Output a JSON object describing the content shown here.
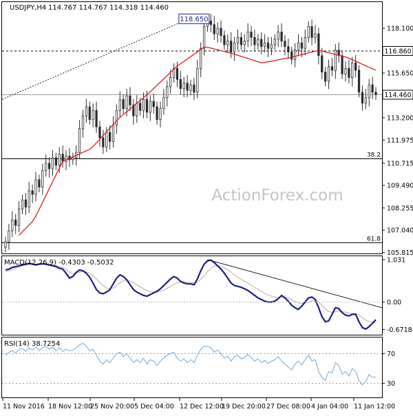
{
  "header": {
    "symbol_text": "USDJPY,H4",
    "ohlc_text": "114.767 114.767 114.318 114.460"
  },
  "watermark": "ActionForex.com",
  "colors": {
    "candle": "#2b2b2b",
    "sma": "#e0191b",
    "macd_line": "#1c1c8a",
    "macd_signal": "#c8a0a0",
    "rsi_line": "#6fa8dc",
    "trendline": "#1a1a1a",
    "axis": "#000000",
    "marker_box": "#1c1c8a"
  },
  "chart_data": [
    {
      "type": "candlestick",
      "panel": "price",
      "y_range": [
        105.8,
        119.5
      ],
      "y_ticks": [
        "118.100",
        "116.860",
        "115.650",
        "114.460",
        "113.200",
        "111.975",
        "110.715",
        "109.490",
        "108.255",
        "107.040",
        "105.815"
      ],
      "x_labels": [
        "11 Nov 2016",
        "18 Nov 12:00",
        "25 Nov 20:00",
        "5 Dec 04:00",
        "12 Dec 12:00",
        "19 Dec 20:00",
        "27 Dec 08:00",
        "4 Jan 04:00",
        "11 Jan 12:00"
      ],
      "highlighted_values": {
        "peak_box": "118.650",
        "resistance": "116.860",
        "current": "114.460"
      },
      "levels": [
        {
          "label": "",
          "value": 116.86,
          "style": "dashed"
        },
        {
          "label": "",
          "value": 114.46,
          "style": "solid-gray"
        },
        {
          "label": "38.2",
          "value": 110.95,
          "style": "solid"
        },
        {
          "label": "61.8",
          "value": 106.35,
          "style": "solid"
        }
      ],
      "closes": [
        106.4,
        107.0,
        107.6,
        107.3,
        108.2,
        108.7,
        108.3,
        109.2,
        109.0,
        109.8,
        109.4,
        110.3,
        110.7,
        110.4,
        111.0,
        110.6,
        111.2,
        110.8,
        111.1,
        110.9,
        111.0,
        111.3,
        112.6,
        113.3,
        113.8,
        113.1,
        113.6,
        112.7,
        112.1,
        111.6,
        112.4,
        111.9,
        112.8,
        113.6,
        114.2,
        113.7,
        114.4,
        113.9,
        113.3,
        114.0,
        113.6,
        114.2,
        113.5,
        114.1,
        113.8,
        113.1,
        113.7,
        114.3,
        114.9,
        115.4,
        115.9,
        115.3,
        114.8,
        115.1,
        114.7,
        115.0,
        114.6,
        115.9,
        117.0,
        118.2,
        118.5,
        118.3,
        117.8,
        118.1,
        117.7,
        117.2,
        117.4,
        116.8,
        117.3,
        117.6,
        117.2,
        117.4,
        117.9,
        117.6,
        117.2,
        117.5,
        117.1,
        117.3,
        117.0,
        117.2,
        117.5,
        117.9,
        117.4,
        117.1,
        116.8,
        116.4,
        116.9,
        117.3,
        117.0,
        117.6,
        118.2,
        117.6,
        117.8,
        116.6,
        115.7,
        115.2,
        116.0,
        115.8,
        116.9,
        116.6,
        115.6,
        115.9,
        115.4,
        116.2,
        115.8,
        114.6,
        114.0,
        114.3,
        115.0,
        114.6,
        114.46
      ],
      "sma_anchor_values": [
        106.0,
        107.6,
        110.8,
        111.5,
        113.2,
        114.5,
        116.0,
        117.1,
        116.7,
        116.2,
        116.5,
        116.9,
        116.5,
        115.8
      ],
      "y_label_side": "right"
    },
    {
      "type": "line",
      "panel": "macd",
      "title": "MACD(12,26,9) -0.4303 -0.5032",
      "y_range": [
        -0.78,
        1.08
      ],
      "y_ticks": [
        "1.031",
        "0.00",
        "-0.6718"
      ],
      "series": [
        {
          "name": "",
          "values": [
            0.78,
            0.8,
            0.84,
            0.86,
            0.88,
            0.9,
            0.92,
            0.94,
            0.92,
            0.9,
            0.92,
            0.93,
            0.92,
            0.9,
            0.88,
            0.86,
            0.82,
            0.8,
            0.7,
            0.58,
            0.62,
            0.72,
            0.78,
            0.76,
            0.7,
            0.6,
            0.46,
            0.3,
            0.22,
            0.2,
            0.24,
            0.3,
            0.44,
            0.58,
            0.66,
            0.62,
            0.54,
            0.42,
            0.3,
            0.24,
            0.2,
            0.16,
            0.14,
            0.18,
            0.22,
            0.26,
            0.32,
            0.4,
            0.48,
            0.56,
            0.62,
            0.58,
            0.5,
            0.46,
            0.44,
            0.44,
            0.42,
            0.56,
            0.76,
            0.92,
            1.0,
            1.02,
            0.96,
            0.88,
            0.8,
            0.7,
            0.58,
            0.46,
            0.4,
            0.38,
            0.36,
            0.32,
            0.28,
            0.22,
            0.16,
            0.1,
            0.06,
            0.02,
            0.0,
            0.0,
            0.02,
            0.08,
            0.16,
            0.1,
            0.02,
            -0.08,
            -0.14,
            -0.18,
            -0.1,
            0.0,
            0.1,
            0.12,
            0.06,
            -0.14,
            -0.36,
            -0.48,
            -0.46,
            -0.3,
            -0.14,
            -0.16,
            -0.26,
            -0.32,
            -0.34,
            -0.3,
            -0.3,
            -0.48,
            -0.62,
            -0.66,
            -0.6,
            -0.52,
            -0.43
          ]
        },
        {
          "name": "",
          "values": [
            0.74,
            0.76,
            0.79,
            0.82,
            0.85,
            0.88,
            0.9,
            0.92,
            0.92,
            0.92,
            0.92,
            0.92,
            0.92,
            0.91,
            0.9,
            0.88,
            0.86,
            0.84,
            0.79,
            0.72,
            0.68,
            0.7,
            0.73,
            0.74,
            0.73,
            0.7,
            0.64,
            0.56,
            0.48,
            0.4,
            0.34,
            0.32,
            0.34,
            0.4,
            0.47,
            0.52,
            0.53,
            0.51,
            0.47,
            0.42,
            0.37,
            0.32,
            0.28,
            0.25,
            0.24,
            0.24,
            0.26,
            0.29,
            0.33,
            0.38,
            0.43,
            0.47,
            0.49,
            0.49,
            0.48,
            0.47,
            0.46,
            0.48,
            0.55,
            0.64,
            0.74,
            0.82,
            0.87,
            0.88,
            0.87,
            0.84,
            0.79,
            0.72,
            0.66,
            0.6,
            0.55,
            0.5,
            0.46,
            0.41,
            0.36,
            0.31,
            0.26,
            0.21,
            0.17,
            0.14,
            0.12,
            0.11,
            0.12,
            0.12,
            0.1,
            0.06,
            0.02,
            -0.02,
            -0.04,
            -0.03,
            0.0,
            0.03,
            0.04,
            0.0,
            -0.08,
            -0.17,
            -0.23,
            -0.25,
            -0.24,
            -0.22,
            -0.23,
            -0.25,
            -0.27,
            -0.28,
            -0.28,
            -0.32,
            -0.38,
            -0.44,
            -0.48,
            -0.49,
            -0.5
          ]
        }
      ]
    },
    {
      "type": "line",
      "panel": "rsi",
      "title": "RSI(14) 38.7254",
      "y_range": [
        12,
        90
      ],
      "y_ticks": [
        "70",
        "30"
      ],
      "levels": [
        70,
        30
      ],
      "series": [
        {
          "name": "",
          "values": [
            68,
            72,
            74,
            71,
            76,
            77,
            73,
            78,
            75,
            79,
            74,
            78,
            80,
            76,
            79,
            74,
            78,
            73,
            76,
            74,
            75,
            78,
            82,
            84,
            80,
            74,
            76,
            68,
            60,
            56,
            62,
            58,
            64,
            70,
            72,
            66,
            70,
            64,
            58,
            62,
            58,
            64,
            56,
            62,
            60,
            54,
            60,
            64,
            68,
            70,
            72,
            64,
            60,
            63,
            58,
            62,
            58,
            68,
            76,
            80,
            80,
            78,
            72,
            75,
            70,
            64,
            67,
            60,
            66,
            68,
            63,
            65,
            69,
            65,
            60,
            63,
            58,
            61,
            57,
            60,
            62,
            66,
            60,
            56,
            52,
            48,
            56,
            60,
            55,
            62,
            68,
            60,
            62,
            46,
            38,
            34,
            46,
            44,
            58,
            54,
            42,
            46,
            40,
            50,
            46,
            34,
            28,
            32,
            42,
            38,
            38.7
          ]
        }
      ]
    }
  ]
}
